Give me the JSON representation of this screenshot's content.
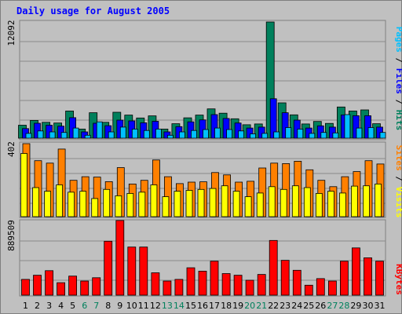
{
  "chart_data": {
    "type": "bar",
    "title": "Daily usage for August 2005",
    "categories": [
      "1",
      "2",
      "3",
      "4",
      "5",
      "6",
      "7",
      "8",
      "9",
      "10",
      "11",
      "12",
      "13",
      "14",
      "15",
      "16",
      "17",
      "18",
      "19",
      "20",
      "21",
      "22",
      "23",
      "24",
      "25",
      "26",
      "27",
      "28",
      "29",
      "30",
      "31"
    ],
    "weekend_days": [
      "6",
      "7",
      "13",
      "14",
      "20",
      "21",
      "27",
      "28"
    ],
    "colors": {
      "hits": "#00805c",
      "files": "#0000ff",
      "pages": "#00c0ff",
      "visits": "#ffff00",
      "sites": "#ff8000",
      "kbytes": "#ff0000",
      "title": "#0000ff",
      "weekend": "#00805c",
      "weekday": "#000000",
      "plot_bg": "#c0c0c0",
      "border": "#7f7f7f"
    },
    "panels": [
      {
        "id": "hits-panel",
        "max_label": "12092",
        "ymax": 12092,
        "gridlines": true,
        "legend": [
          {
            "text": "Pages",
            "color": "#00c0ff"
          },
          {
            "text": " / ",
            "color": "#000000"
          },
          {
            "text": "Files",
            "color": "#0000ff"
          },
          {
            "text": " / ",
            "color": "#000000"
          },
          {
            "text": "Hits",
            "color": "#00805c"
          }
        ],
        "series": [
          {
            "name": "Hits",
            "color": "#00805c",
            "values": [
              1350,
              1850,
              1650,
              1580,
              2830,
              950,
              2650,
              1650,
              2700,
              2400,
              2100,
              2320,
              950,
              1500,
              2120,
              2400,
              3050,
              2600,
              2020,
              1400,
              1480,
              12092,
              3680,
              2430,
              1480,
              1740,
              1540,
              3240,
              2830,
              2940,
              1500
            ]
          },
          {
            "name": "Files",
            "color": "#0000ff",
            "values": [
              1000,
              1550,
              1350,
              1250,
              2130,
              650,
              1550,
              1300,
              1880,
              1800,
              1600,
              1760,
              650,
              1200,
              1700,
              1900,
              2450,
              2050,
              1580,
              1050,
              1150,
              4100,
              2650,
              1880,
              1050,
              1280,
              1150,
              2420,
              2340,
              2340,
              1150
            ]
          },
          {
            "name": "Pages",
            "color": "#00c0ff",
            "values": [
              500,
              750,
              650,
              600,
              1050,
              300,
              1700,
              650,
              1150,
              950,
              800,
              950,
              300,
              650,
              800,
              900,
              1050,
              900,
              750,
              450,
              500,
              650,
              1100,
              950,
              500,
              600,
              550,
              2450,
              1050,
              1100,
              600
            ]
          }
        ]
      },
      {
        "id": "visits-panel",
        "max_label": "402",
        "ymax": 402,
        "gridlines": true,
        "legend": [
          {
            "text": "Sites",
            "color": "#ff8000"
          },
          {
            "text": " / ",
            "color": "#000000"
          },
          {
            "text": "Visits",
            "color": "#ffff00"
          }
        ],
        "series": [
          {
            "name": "Sites",
            "color": "#ff8000",
            "values": [
              402,
              308,
              295,
              372,
              200,
              220,
              218,
              193,
              270,
              180,
              200,
              312,
              220,
              182,
              190,
              192,
              243,
              230,
              190,
              195,
              268,
              295,
              292,
              305,
              258,
              200,
              165,
              220,
              248,
              308,
              290
            ]
          },
          {
            "name": "Visits",
            "color": "#ffff00",
            "values": [
              348,
              160,
              140,
              175,
              135,
              140,
              100,
              150,
              115,
              128,
              135,
              175,
              110,
              140,
              145,
              150,
              155,
              170,
              140,
              110,
              130,
              165,
              150,
              170,
              160,
              128,
              140,
              130,
              168,
              170,
              180
            ]
          }
        ]
      },
      {
        "id": "kbytes-panel",
        "max_label": "889509",
        "ymax": 889509,
        "gridlines": true,
        "legend": [
          {
            "text": "KBytes",
            "color": "#ff0000"
          }
        ],
        "series": [
          {
            "name": "KBytes",
            "color": "#ff0000",
            "values": [
              190000,
              240000,
              295000,
              150000,
              230000,
              170000,
              210000,
              650000,
              900000,
              580000,
              580000,
              270000,
              170000,
              190000,
              330000,
              290000,
              410000,
              260000,
              240000,
              180000,
              250000,
              660000,
              420000,
              300000,
              120000,
              200000,
              170000,
              410000,
              570000,
              450000,
              410000
            ]
          }
        ]
      }
    ]
  }
}
